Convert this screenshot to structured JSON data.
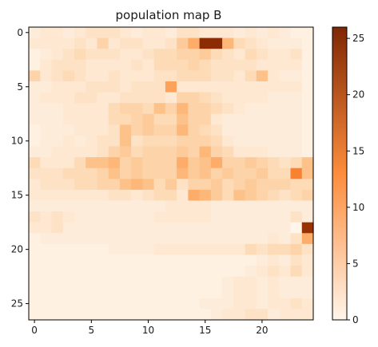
{
  "chart_data": {
    "type": "heatmap",
    "title": "population map B",
    "colormap": "Oranges",
    "colors": {
      "low": "#fff5eb",
      "mid": "#fd8d3c",
      "high": "#7f2704"
    },
    "vmin": 0,
    "vmax": 26,
    "x_ticks": [
      0,
      5,
      10,
      15,
      20
    ],
    "y_ticks": [
      0,
      5,
      10,
      15,
      20,
      25
    ],
    "colorbar_ticks": [
      0,
      5,
      10,
      15,
      20,
      25
    ],
    "values": [
      [
        2,
        3,
        3,
        2,
        3,
        4,
        4,
        4,
        3,
        2,
        3,
        3,
        2,
        4,
        4,
        3,
        3,
        3,
        2,
        3,
        2,
        3,
        2,
        1,
        1
      ],
      [
        3,
        3,
        3,
        3,
        4,
        3,
        6,
        3,
        4,
        4,
        3,
        3,
        4,
        7,
        10,
        25,
        25,
        9,
        5,
        4,
        3,
        2,
        2,
        2,
        1
      ],
      [
        1,
        2,
        3,
        4,
        5,
        4,
        4,
        4,
        3,
        3,
        4,
        5,
        5,
        6,
        6,
        7,
        5,
        4,
        3,
        5,
        4,
        3,
        3,
        4,
        1
      ],
      [
        1,
        3,
        4,
        4,
        4,
        3,
        3,
        3,
        3,
        4,
        3,
        5,
        5,
        5,
        6,
        5,
        4,
        4,
        4,
        4,
        3,
        3,
        3,
        3,
        1
      ],
      [
        6,
        3,
        4,
        5,
        4,
        3,
        3,
        4,
        3,
        3,
        3,
        4,
        4,
        5,
        5,
        5,
        4,
        4,
        3,
        5,
        8,
        3,
        2,
        2,
        1
      ],
      [
        2,
        2,
        3,
        3,
        3,
        4,
        4,
        4,
        3,
        4,
        4,
        4,
        11,
        3,
        3,
        3,
        3,
        3,
        3,
        3,
        3,
        3,
        3,
        3,
        1
      ],
      [
        2,
        3,
        3,
        3,
        4,
        4,
        3,
        3,
        4,
        4,
        4,
        4,
        3,
        6,
        6,
        5,
        4,
        3,
        3,
        3,
        3,
        2,
        2,
        2,
        1
      ],
      [
        2,
        2,
        2,
        3,
        3,
        3,
        3,
        5,
        6,
        6,
        5,
        8,
        6,
        9,
        6,
        6,
        5,
        4,
        3,
        2,
        2,
        2,
        2,
        2,
        1
      ],
      [
        2,
        2,
        2,
        3,
        3,
        3,
        3,
        5,
        5,
        6,
        7,
        5,
        5,
        8,
        6,
        6,
        3,
        2,
        2,
        2,
        2,
        2,
        2,
        2,
        1
      ],
      [
        1,
        2,
        2,
        2,
        3,
        3,
        3,
        4,
        8,
        6,
        7,
        6,
        6,
        9,
        6,
        5,
        4,
        2,
        2,
        2,
        2,
        2,
        2,
        2,
        1
      ],
      [
        1,
        2,
        2,
        3,
        2,
        3,
        4,
        4,
        8,
        4,
        5,
        5,
        5,
        6,
        6,
        6,
        5,
        3,
        2,
        2,
        2,
        2,
        2,
        2,
        1
      ],
      [
        2,
        2,
        3,
        3,
        3,
        3,
        4,
        6,
        7,
        5,
        6,
        6,
        6,
        7,
        6,
        9,
        6,
        5,
        3,
        3,
        3,
        2,
        2,
        2,
        1
      ],
      [
        5,
        3,
        3,
        3,
        5,
        8,
        8,
        9,
        6,
        7,
        6,
        6,
        6,
        10,
        7,
        8,
        10,
        6,
        6,
        7,
        6,
        5,
        4,
        5,
        8
      ],
      [
        4,
        4,
        4,
        5,
        5,
        5,
        6,
        8,
        6,
        7,
        6,
        6,
        6,
        9,
        7,
        8,
        6,
        7,
        6,
        6,
        7,
        5,
        5,
        14,
        8
      ],
      [
        3,
        4,
        4,
        4,
        5,
        5,
        6,
        6,
        8,
        9,
        8,
        5,
        7,
        4,
        6,
        6,
        7,
        5,
        6,
        7,
        6,
        6,
        6,
        5,
        5
      ],
      [
        3,
        3,
        3,
        3,
        3,
        3,
        3,
        4,
        4,
        3,
        4,
        5,
        5,
        3,
        10,
        9,
        7,
        5,
        8,
        7,
        6,
        5,
        4,
        5,
        6
      ],
      [
        2,
        2,
        2,
        2,
        2,
        2,
        2,
        2,
        2,
        2,
        2,
        2,
        3,
        3,
        3,
        3,
        2,
        2,
        2,
        2,
        2,
        2,
        2,
        2,
        2
      ],
      [
        4,
        3,
        4,
        3,
        2,
        2,
        2,
        2,
        2,
        2,
        2,
        3,
        3,
        3,
        3,
        3,
        2,
        2,
        2,
        2,
        2,
        2,
        2,
        4,
        2
      ],
      [
        3,
        3,
        4,
        2,
        2,
        2,
        2,
        2,
        2,
        2,
        2,
        2,
        2,
        2,
        2,
        2,
        2,
        2,
        2,
        2,
        2,
        2,
        2,
        0,
        24
      ],
      [
        1,
        2,
        2,
        2,
        2,
        2,
        2,
        2,
        2,
        2,
        2,
        2,
        2,
        2,
        2,
        2,
        2,
        2,
        2,
        2,
        2,
        3,
        2,
        4,
        10
      ],
      [
        1,
        1,
        1,
        1,
        1,
        1,
        1,
        2,
        2,
        2,
        2,
        3,
        3,
        3,
        3,
        3,
        3,
        3,
        3,
        5,
        4,
        5,
        5,
        6,
        4
      ],
      [
        1,
        1,
        1,
        1,
        1,
        1,
        1,
        1,
        1,
        1,
        1,
        1,
        1,
        1,
        1,
        1,
        1,
        1,
        1,
        1,
        2,
        3,
        2,
        4,
        3
      ],
      [
        1,
        1,
        1,
        1,
        1,
        1,
        1,
        1,
        1,
        1,
        1,
        1,
        1,
        1,
        1,
        1,
        1,
        1,
        1,
        2,
        3,
        4,
        3,
        5,
        3
      ],
      [
        1,
        1,
        1,
        1,
        1,
        1,
        1,
        1,
        1,
        1,
        1,
        1,
        1,
        1,
        1,
        1,
        1,
        2,
        3,
        3,
        2,
        3,
        2,
        2,
        2
      ],
      [
        1,
        1,
        1,
        1,
        1,
        1,
        1,
        1,
        1,
        1,
        1,
        1,
        1,
        1,
        1,
        1,
        1,
        2,
        3,
        3,
        2,
        3,
        2,
        2,
        2
      ],
      [
        1,
        1,
        1,
        1,
        1,
        1,
        1,
        1,
        1,
        1,
        1,
        1,
        1,
        1,
        1,
        2,
        2,
        2,
        3,
        3,
        2,
        3,
        3,
        4,
        3
      ],
      [
        1,
        1,
        1,
        1,
        1,
        1,
        1,
        1,
        1,
        1,
        1,
        1,
        1,
        1,
        1,
        1,
        2,
        3,
        3,
        4,
        4,
        2,
        3,
        3,
        3
      ]
    ]
  }
}
